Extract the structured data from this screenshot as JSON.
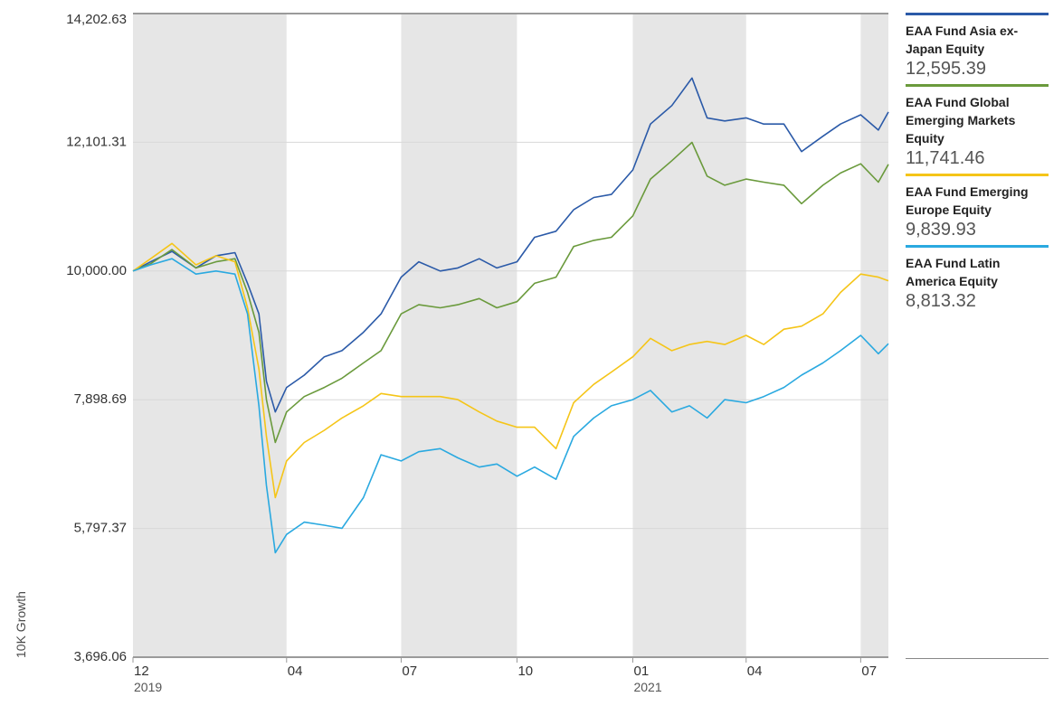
{
  "chart_data": {
    "type": "line",
    "ylabel": "10K Growth",
    "y_ticks": [
      "14,202.63",
      "12,101.31",
      "10,000.00",
      "7,898.69",
      "5,797.37",
      "3,696.06"
    ],
    "ylim": [
      3696.06,
      14202.63
    ],
    "x_ticks": [
      {
        "label": "12",
        "date": "2019-12-01",
        "year": "2019"
      },
      {
        "label": "04",
        "date": "2020-04-01",
        "year": ""
      },
      {
        "label": "07",
        "date": "2020-07-01",
        "year": ""
      },
      {
        "label": "10",
        "date": "2020-10-01",
        "year": ""
      },
      {
        "label": "01",
        "date": "2021-01-01",
        "year": "2021"
      },
      {
        "label": "04",
        "date": "2021-04-01",
        "year": ""
      },
      {
        "label": "07",
        "date": "2021-07-01",
        "year": ""
      }
    ],
    "xlim": [
      "2019-12-01",
      "2021-07-23"
    ],
    "shaded_bands": [
      [
        "2019-12-01",
        "2020-04-01"
      ],
      [
        "2020-07-01",
        "2020-10-01"
      ],
      [
        "2021-01-01",
        "2021-04-01"
      ],
      [
        "2021-07-01",
        "2021-07-23"
      ]
    ],
    "grid": true,
    "legend_position": "right",
    "series": [
      {
        "name": "EAA Fund Asia ex-Japan Equity",
        "final_value": "12,595.39",
        "color": "#2b5aa8",
        "points": [
          [
            "2019-12-01",
            10000
          ],
          [
            "2019-12-15",
            10150
          ],
          [
            "2020-01-01",
            10320
          ],
          [
            "2020-01-20",
            10050
          ],
          [
            "2020-02-05",
            10250
          ],
          [
            "2020-02-20",
            10300
          ],
          [
            "2020-03-01",
            9800
          ],
          [
            "2020-03-10",
            9300
          ],
          [
            "2020-03-16",
            8200
          ],
          [
            "2020-03-23",
            7700
          ],
          [
            "2020-04-01",
            8100
          ],
          [
            "2020-04-15",
            8300
          ],
          [
            "2020-05-01",
            8600
          ],
          [
            "2020-05-15",
            8700
          ],
          [
            "2020-06-01",
            9000
          ],
          [
            "2020-06-15",
            9300
          ],
          [
            "2020-07-01",
            9900
          ],
          [
            "2020-07-15",
            10150
          ],
          [
            "2020-08-01",
            10000
          ],
          [
            "2020-08-15",
            10050
          ],
          [
            "2020-09-01",
            10200
          ],
          [
            "2020-09-15",
            10050
          ],
          [
            "2020-10-01",
            10150
          ],
          [
            "2020-10-15",
            10550
          ],
          [
            "2020-11-01",
            10650
          ],
          [
            "2020-11-15",
            11000
          ],
          [
            "2020-12-01",
            11200
          ],
          [
            "2020-12-15",
            11250
          ],
          [
            "2021-01-01",
            11650
          ],
          [
            "2021-01-15",
            12400
          ],
          [
            "2021-02-01",
            12700
          ],
          [
            "2021-02-17",
            13150
          ],
          [
            "2021-03-01",
            12500
          ],
          [
            "2021-03-15",
            12450
          ],
          [
            "2021-04-01",
            12500
          ],
          [
            "2021-04-15",
            12400
          ],
          [
            "2021-05-01",
            12400
          ],
          [
            "2021-05-15",
            11950
          ],
          [
            "2021-06-01",
            12200
          ],
          [
            "2021-06-15",
            12400
          ],
          [
            "2021-07-01",
            12550
          ],
          [
            "2021-07-15",
            12300
          ],
          [
            "2021-07-23",
            12595.39
          ]
        ]
      },
      {
        "name": "EAA Fund Global Emerging Markets Equity",
        "final_value": "11,741.46",
        "color": "#6a9a3c",
        "points": [
          [
            "2019-12-01",
            10000
          ],
          [
            "2019-12-15",
            10120
          ],
          [
            "2020-01-01",
            10350
          ],
          [
            "2020-01-20",
            10050
          ],
          [
            "2020-02-05",
            10150
          ],
          [
            "2020-02-20",
            10200
          ],
          [
            "2020-03-01",
            9650
          ],
          [
            "2020-03-10",
            9000
          ],
          [
            "2020-03-16",
            7900
          ],
          [
            "2020-03-23",
            7200
          ],
          [
            "2020-04-01",
            7700
          ],
          [
            "2020-04-15",
            7950
          ],
          [
            "2020-05-01",
            8100
          ],
          [
            "2020-05-15",
            8250
          ],
          [
            "2020-06-01",
            8500
          ],
          [
            "2020-06-15",
            8700
          ],
          [
            "2020-07-01",
            9300
          ],
          [
            "2020-07-15",
            9450
          ],
          [
            "2020-08-01",
            9400
          ],
          [
            "2020-08-15",
            9450
          ],
          [
            "2020-09-01",
            9550
          ],
          [
            "2020-09-15",
            9400
          ],
          [
            "2020-10-01",
            9500
          ],
          [
            "2020-10-15",
            9800
          ],
          [
            "2020-11-01",
            9900
          ],
          [
            "2020-11-15",
            10400
          ],
          [
            "2020-12-01",
            10500
          ],
          [
            "2020-12-15",
            10550
          ],
          [
            "2021-01-01",
            10900
          ],
          [
            "2021-01-15",
            11500
          ],
          [
            "2021-02-01",
            11800
          ],
          [
            "2021-02-17",
            12100
          ],
          [
            "2021-03-01",
            11550
          ],
          [
            "2021-03-15",
            11400
          ],
          [
            "2021-04-01",
            11500
          ],
          [
            "2021-04-15",
            11450
          ],
          [
            "2021-05-01",
            11400
          ],
          [
            "2021-05-15",
            11100
          ],
          [
            "2021-06-01",
            11400
          ],
          [
            "2021-06-15",
            11600
          ],
          [
            "2021-07-01",
            11750
          ],
          [
            "2021-07-15",
            11450
          ],
          [
            "2021-07-23",
            11741.46
          ]
        ]
      },
      {
        "name": "EAA Fund Emerging Europe Equity",
        "final_value": "9,839.93",
        "color": "#f5c518",
        "points": [
          [
            "2019-12-01",
            10000
          ],
          [
            "2019-12-15",
            10200
          ],
          [
            "2020-01-01",
            10450
          ],
          [
            "2020-01-20",
            10100
          ],
          [
            "2020-02-05",
            10250
          ],
          [
            "2020-02-20",
            10150
          ],
          [
            "2020-03-01",
            9400
          ],
          [
            "2020-03-10",
            8400
          ],
          [
            "2020-03-16",
            7300
          ],
          [
            "2020-03-23",
            6300
          ],
          [
            "2020-04-01",
            6900
          ],
          [
            "2020-04-15",
            7200
          ],
          [
            "2020-05-01",
            7400
          ],
          [
            "2020-05-15",
            7600
          ],
          [
            "2020-06-01",
            7800
          ],
          [
            "2020-06-15",
            8000
          ],
          [
            "2020-07-01",
            7950
          ],
          [
            "2020-07-15",
            7950
          ],
          [
            "2020-08-01",
            7950
          ],
          [
            "2020-08-15",
            7900
          ],
          [
            "2020-09-01",
            7700
          ],
          [
            "2020-09-15",
            7550
          ],
          [
            "2020-10-01",
            7450
          ],
          [
            "2020-10-15",
            7450
          ],
          [
            "2020-11-01",
            7100
          ],
          [
            "2020-11-15",
            7850
          ],
          [
            "2020-12-01",
            8150
          ],
          [
            "2020-12-15",
            8350
          ],
          [
            "2021-01-01",
            8600
          ],
          [
            "2021-01-15",
            8900
          ],
          [
            "2021-02-01",
            8700
          ],
          [
            "2021-02-15",
            8800
          ],
          [
            "2021-03-01",
            8850
          ],
          [
            "2021-03-15",
            8800
          ],
          [
            "2021-04-01",
            8950
          ],
          [
            "2021-04-15",
            8800
          ],
          [
            "2021-05-01",
            9050
          ],
          [
            "2021-05-15",
            9100
          ],
          [
            "2021-06-01",
            9300
          ],
          [
            "2021-06-15",
            9650
          ],
          [
            "2021-07-01",
            9950
          ],
          [
            "2021-07-15",
            9900
          ],
          [
            "2021-07-23",
            9839.93
          ]
        ]
      },
      {
        "name": "EAA Fund Latin America Equity",
        "final_value": "8,813.32",
        "color": "#2aa9e0",
        "points": [
          [
            "2019-12-01",
            10000
          ],
          [
            "2019-12-15",
            10100
          ],
          [
            "2020-01-01",
            10200
          ],
          [
            "2020-01-20",
            9950
          ],
          [
            "2020-02-05",
            10000
          ],
          [
            "2020-02-20",
            9950
          ],
          [
            "2020-03-01",
            9300
          ],
          [
            "2020-03-10",
            7800
          ],
          [
            "2020-03-16",
            6500
          ],
          [
            "2020-03-23",
            5400
          ],
          [
            "2020-04-01",
            5700
          ],
          [
            "2020-04-15",
            5900
          ],
          [
            "2020-05-01",
            5850
          ],
          [
            "2020-05-15",
            5800
          ],
          [
            "2020-06-01",
            6300
          ],
          [
            "2020-06-15",
            7000
          ],
          [
            "2020-07-01",
            6900
          ],
          [
            "2020-07-15",
            7050
          ],
          [
            "2020-08-01",
            7100
          ],
          [
            "2020-08-15",
            6950
          ],
          [
            "2020-09-01",
            6800
          ],
          [
            "2020-09-15",
            6850
          ],
          [
            "2020-10-01",
            6650
          ],
          [
            "2020-10-15",
            6800
          ],
          [
            "2020-11-01",
            6600
          ],
          [
            "2020-11-15",
            7300
          ],
          [
            "2020-12-01",
            7600
          ],
          [
            "2020-12-15",
            7800
          ],
          [
            "2021-01-01",
            7900
          ],
          [
            "2021-01-15",
            8050
          ],
          [
            "2021-02-01",
            7700
          ],
          [
            "2021-02-15",
            7800
          ],
          [
            "2021-03-01",
            7600
          ],
          [
            "2021-03-15",
            7900
          ],
          [
            "2021-04-01",
            7850
          ],
          [
            "2021-04-15",
            7950
          ],
          [
            "2021-05-01",
            8100
          ],
          [
            "2021-05-15",
            8300
          ],
          [
            "2021-06-01",
            8500
          ],
          [
            "2021-06-15",
            8700
          ],
          [
            "2021-07-01",
            8950
          ],
          [
            "2021-07-15",
            8650
          ],
          [
            "2021-07-23",
            8813.32
          ]
        ]
      }
    ]
  }
}
